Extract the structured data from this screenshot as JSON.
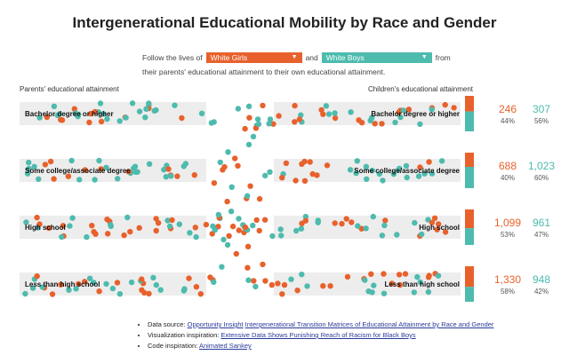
{
  "title": "Intergenerational Educational Mobility by Race and Gender",
  "controls": {
    "prefix": "Follow the lives of",
    "group_a": "White Girls",
    "joiner": "and",
    "group_b": "White Boys",
    "suffix": "from",
    "line2": "their parents' educational attainment to their own educational attainment."
  },
  "colors": {
    "group_a": "#E8612C",
    "group_b": "#4DBBAE",
    "band": "#EDEDED"
  },
  "headers": {
    "left": "Parents' educational attainment",
    "right": "Children's educational attainment"
  },
  "chart_data": {
    "type": "sankey-dot",
    "levels": [
      "Bachelor degree or higher",
      "Some college/associate degree",
      "High school",
      "Less than high school"
    ],
    "series": [
      {
        "name": "White Girls",
        "counts": [
          "246",
          "688",
          "1,099",
          "1,330"
        ],
        "pcts": [
          "44%",
          "40%",
          "53%",
          "58%"
        ],
        "shares": [
          0.44,
          0.4,
          0.53,
          0.58
        ]
      },
      {
        "name": "White Boys",
        "counts": [
          "307",
          "1,023",
          "961",
          "948"
        ],
        "pcts": [
          "56%",
          "60%",
          "47%",
          "42%"
        ],
        "shares": [
          0.56,
          0.6,
          0.47,
          0.42
        ]
      }
    ]
  },
  "notes": {
    "source_label": "Data source:",
    "source_link1": "Opportunity Insight",
    "source_link2": "Intergenerational Transition Matrices of Educational Attainment by Race and Gender",
    "viz_label": "Visualization inspiration:",
    "viz_link": "Extensive Data Shows Punishing Reach of Racism for Black Boys",
    "code_label": "Code inspiration:",
    "code_link": "Animated Sankey"
  }
}
